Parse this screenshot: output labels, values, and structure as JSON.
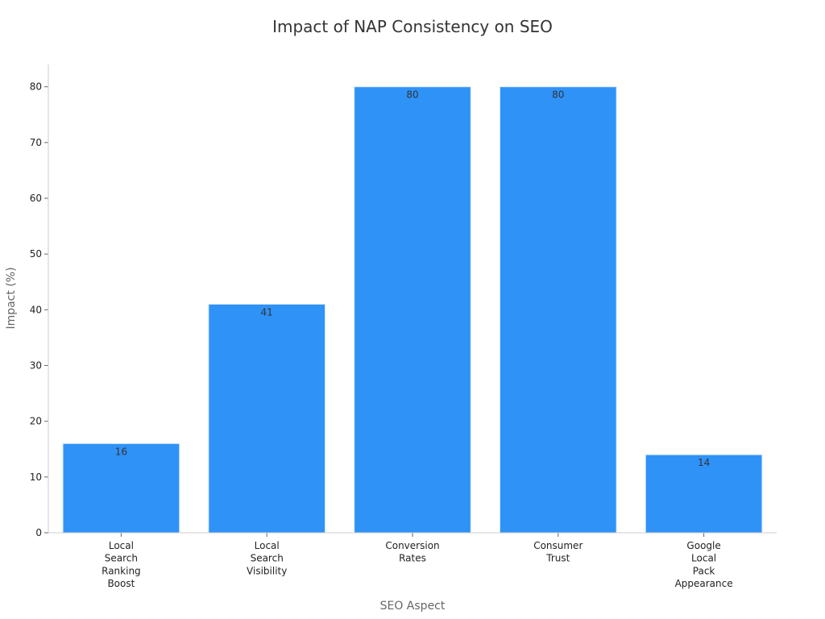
{
  "chart_data": {
    "type": "bar",
    "title": "Impact of NAP Consistency on SEO",
    "xlabel": "SEO Aspect",
    "ylabel": "Impact (%)",
    "categories": [
      "Local Search Ranking Boost",
      "Local Search Visibility",
      "Conversion Rates",
      "Consumer Trust",
      "Google Local Pack Appearance"
    ],
    "category_lines": [
      [
        "Local",
        "Search",
        "Ranking",
        "Boost"
      ],
      [
        "Local",
        "Search",
        "Visibility"
      ],
      [
        "Conversion",
        "Rates"
      ],
      [
        "Consumer",
        "Trust"
      ],
      [
        "Google",
        "Local",
        "Pack",
        "Appearance"
      ]
    ],
    "values": [
      16,
      41,
      80,
      80,
      14
    ],
    "ylim": [
      0,
      84
    ],
    "yticks": [
      0,
      10,
      20,
      30,
      40,
      50,
      60,
      70,
      80
    ],
    "grid": false,
    "legend": "none",
    "data_labels": true,
    "bar_color": "#2f92f7"
  }
}
